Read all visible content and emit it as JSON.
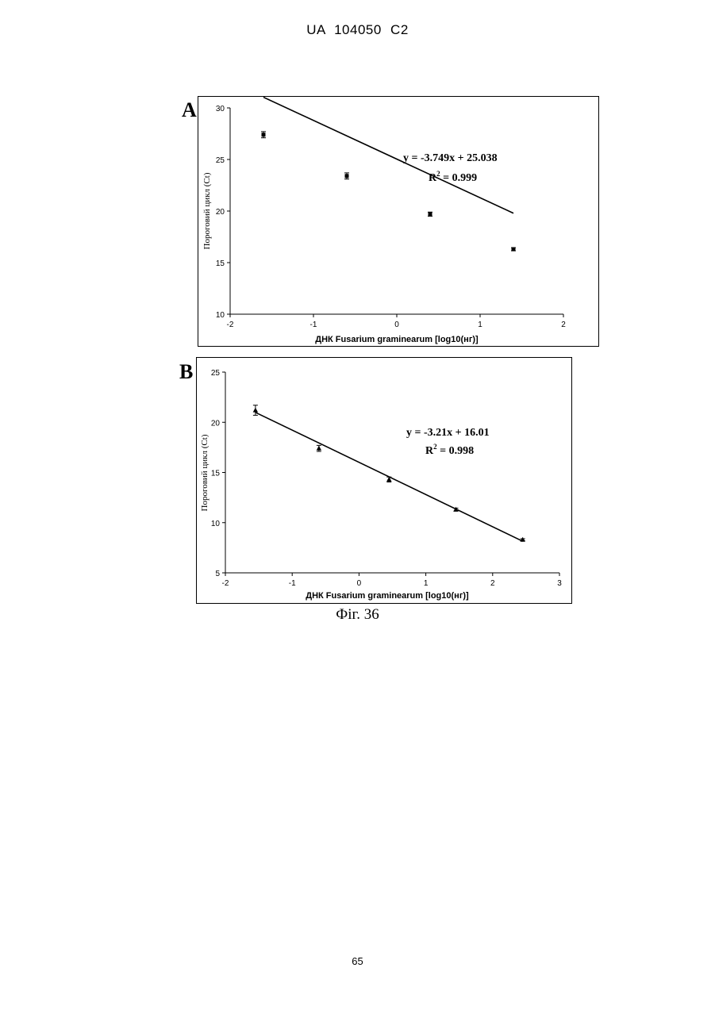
{
  "header": {
    "doc_id": "UA   104050   C2"
  },
  "caption": "Фіг. 36",
  "page_number": "65",
  "chart_data": [
    {
      "panel": "A",
      "type": "scatter",
      "xlabel": "ДНК Fusarium graminearum [log10(нг)]",
      "ylabel": "Пороговий цикл (Ct)",
      "xlim": [
        -2,
        2
      ],
      "ylim": [
        10,
        30
      ],
      "xticks": [
        -2,
        -1,
        0,
        1,
        2
      ],
      "yticks": [
        10,
        15,
        20,
        25,
        30
      ],
      "xtick_labels": [
        "-2",
        "-1",
        "0",
        "1",
        "2"
      ],
      "ytick_labels": [
        "10",
        "15",
        "20",
        "25",
        "30"
      ],
      "marker": "square",
      "points": [
        {
          "x": -1.6,
          "y": 27.4,
          "err": 0.3
        },
        {
          "x": -0.6,
          "y": 23.4,
          "err": 0.3
        },
        {
          "x": 0.4,
          "y": 19.7,
          "err": 0.2
        },
        {
          "x": 1.4,
          "y": 16.3,
          "err": 0.15
        }
      ],
      "fit": {
        "slope": -3.749,
        "intercept": 25.038,
        "x_range": [
          -1.6,
          1.4
        ]
      },
      "equation": "y = -3.749x + 25.038",
      "r2_label": "R",
      "r2_sup": "2",
      "r2_value": " = 0.999"
    },
    {
      "panel": "B",
      "type": "scatter",
      "xlabel": "ДНК Fusarium graminearum [log10(нг)]",
      "ylabel": "Пороговий цикл (Ct)",
      "xlim": [
        -2,
        3
      ],
      "ylim": [
        5,
        25
      ],
      "xticks": [
        -2,
        -1,
        0,
        1,
        2,
        3
      ],
      "yticks": [
        5,
        10,
        15,
        20,
        25
      ],
      "xtick_labels": [
        "-2",
        "-1",
        "0",
        "1",
        "2",
        "3"
      ],
      "ytick_labels": [
        "5",
        "10",
        "15",
        "20",
        "25"
      ],
      "marker": "triangle",
      "points": [
        {
          "x": -1.55,
          "y": 21.2,
          "err": 0.5
        },
        {
          "x": -0.6,
          "y": 17.4,
          "err": 0.3
        },
        {
          "x": 0.45,
          "y": 14.3,
          "err": 0.25
        },
        {
          "x": 1.45,
          "y": 11.3,
          "err": 0.15
        },
        {
          "x": 2.45,
          "y": 8.3,
          "err": 0.1
        }
      ],
      "fit": {
        "slope": -3.21,
        "intercept": 16.01,
        "x_range": [
          -1.55,
          2.45
        ]
      },
      "equation": "y = -3.21x + 16.01",
      "r2_label": "R",
      "r2_sup": "2",
      "r2_value": " = 0.998"
    }
  ]
}
